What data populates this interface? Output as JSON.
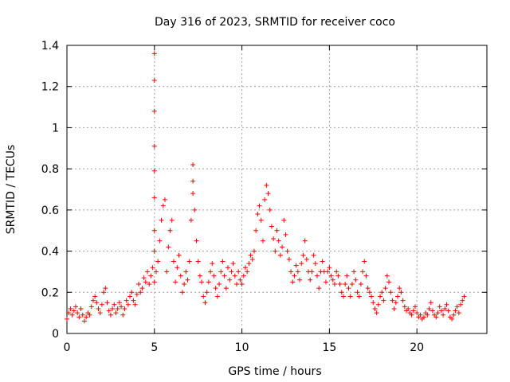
{
  "chart_data": {
    "type": "scatter",
    "title": "Day 316 of 2023, SRMTID for receiver coco",
    "xlabel": "GPS time / hours",
    "ylabel": "SRMTID / TECUs",
    "xlim": [
      0,
      24
    ],
    "ylim": [
      0,
      1.4
    ],
    "xticks": [
      0,
      5,
      10,
      15,
      20
    ],
    "xtick_labels": [
      "0",
      "5",
      "10",
      "15",
      "20"
    ],
    "yticks": [
      0,
      0.2,
      0.4,
      0.6,
      0.8,
      1,
      1.2,
      1.4
    ],
    "ytick_labels": [
      "0",
      "0.2",
      "0.4",
      "0.6",
      "0.8",
      "1",
      "1.2",
      "1.4"
    ],
    "grid": true,
    "marker": "+",
    "color": "#ff0000",
    "series": [
      {
        "name": "SRMTID",
        "points": [
          [
            0.0,
            0.07
          ],
          [
            0.1,
            0.1
          ],
          [
            0.2,
            0.12
          ],
          [
            0.3,
            0.09
          ],
          [
            0.4,
            0.11
          ],
          [
            0.5,
            0.13
          ],
          [
            0.6,
            0.1
          ],
          [
            0.7,
            0.08
          ],
          [
            0.8,
            0.12
          ],
          [
            0.9,
            0.09
          ],
          [
            1.0,
            0.06
          ],
          [
            1.1,
            0.08
          ],
          [
            1.2,
            0.1
          ],
          [
            1.3,
            0.09
          ],
          [
            1.4,
            0.13
          ],
          [
            1.5,
            0.16
          ],
          [
            1.6,
            0.18
          ],
          [
            1.7,
            0.15
          ],
          [
            1.8,
            0.12
          ],
          [
            1.9,
            0.1
          ],
          [
            2.0,
            0.14
          ],
          [
            2.1,
            0.2
          ],
          [
            2.2,
            0.22
          ],
          [
            2.3,
            0.15
          ],
          [
            2.4,
            0.11
          ],
          [
            2.5,
            0.09
          ],
          [
            2.6,
            0.12
          ],
          [
            2.7,
            0.14
          ],
          [
            2.8,
            0.1
          ],
          [
            2.9,
            0.12
          ],
          [
            3.0,
            0.15
          ],
          [
            3.1,
            0.13
          ],
          [
            3.2,
            0.09
          ],
          [
            3.3,
            0.12
          ],
          [
            3.4,
            0.16
          ],
          [
            3.5,
            0.14
          ],
          [
            3.6,
            0.18
          ],
          [
            3.7,
            0.2
          ],
          [
            3.8,
            0.16
          ],
          [
            3.9,
            0.14
          ],
          [
            4.0,
            0.19
          ],
          [
            4.1,
            0.24
          ],
          [
            4.2,
            0.2
          ],
          [
            4.3,
            0.22
          ],
          [
            4.4,
            0.27
          ],
          [
            4.5,
            0.25
          ],
          [
            4.6,
            0.3
          ],
          [
            4.7,
            0.24
          ],
          [
            4.8,
            0.28
          ],
          [
            4.9,
            0.32
          ],
          [
            5.0,
            0.25
          ],
          [
            5.0,
            0.4
          ],
          [
            5.0,
            0.5
          ],
          [
            5.0,
            0.66
          ],
          [
            5.0,
            0.79
          ],
          [
            5.0,
            0.91
          ],
          [
            5.0,
            1.08
          ],
          [
            5.0,
            1.23
          ],
          [
            5.0,
            1.36
          ],
          [
            5.1,
            0.3
          ],
          [
            5.2,
            0.35
          ],
          [
            5.3,
            0.45
          ],
          [
            5.4,
            0.55
          ],
          [
            5.5,
            0.62
          ],
          [
            5.6,
            0.65
          ],
          [
            5.7,
            0.3
          ],
          [
            5.8,
            0.42
          ],
          [
            5.9,
            0.5
          ],
          [
            6.0,
            0.55
          ],
          [
            6.1,
            0.35
          ],
          [
            6.2,
            0.25
          ],
          [
            6.3,
            0.32
          ],
          [
            6.4,
            0.38
          ],
          [
            6.5,
            0.28
          ],
          [
            6.6,
            0.2
          ],
          [
            6.7,
            0.24
          ],
          [
            6.8,
            0.3
          ],
          [
            6.9,
            0.26
          ],
          [
            7.0,
            0.35
          ],
          [
            7.1,
            0.55
          ],
          [
            7.2,
            0.68
          ],
          [
            7.2,
            0.74
          ],
          [
            7.2,
            0.82
          ],
          [
            7.3,
            0.6
          ],
          [
            7.4,
            0.45
          ],
          [
            7.5,
            0.35
          ],
          [
            7.6,
            0.28
          ],
          [
            7.7,
            0.25
          ],
          [
            7.8,
            0.18
          ],
          [
            7.9,
            0.15
          ],
          [
            8.0,
            0.2
          ],
          [
            8.1,
            0.25
          ],
          [
            8.2,
            0.3
          ],
          [
            8.3,
            0.34
          ],
          [
            8.4,
            0.28
          ],
          [
            8.5,
            0.22
          ],
          [
            8.6,
            0.18
          ],
          [
            8.7,
            0.24
          ],
          [
            8.8,
            0.3
          ],
          [
            8.9,
            0.35
          ],
          [
            9.0,
            0.28
          ],
          [
            9.1,
            0.22
          ],
          [
            9.2,
            0.32
          ],
          [
            9.3,
            0.26
          ],
          [
            9.4,
            0.3
          ],
          [
            9.5,
            0.34
          ],
          [
            9.6,
            0.28
          ],
          [
            9.7,
            0.24
          ],
          [
            9.8,
            0.3
          ],
          [
            9.9,
            0.26
          ],
          [
            10.0,
            0.24
          ],
          [
            10.1,
            0.28
          ],
          [
            10.2,
            0.32
          ],
          [
            10.3,
            0.3
          ],
          [
            10.4,
            0.34
          ],
          [
            10.5,
            0.38
          ],
          [
            10.6,
            0.36
          ],
          [
            10.7,
            0.4
          ],
          [
            10.8,
            0.5
          ],
          [
            10.9,
            0.58
          ],
          [
            11.0,
            0.62
          ],
          [
            11.1,
            0.55
          ],
          [
            11.2,
            0.45
          ],
          [
            11.3,
            0.65
          ],
          [
            11.4,
            0.72
          ],
          [
            11.5,
            0.68
          ],
          [
            11.6,
            0.6
          ],
          [
            11.7,
            0.52
          ],
          [
            11.8,
            0.46
          ],
          [
            11.9,
            0.4
          ],
          [
            12.0,
            0.5
          ],
          [
            12.1,
            0.45
          ],
          [
            12.2,
            0.38
          ],
          [
            12.3,
            0.42
          ],
          [
            12.4,
            0.55
          ],
          [
            12.5,
            0.48
          ],
          [
            12.6,
            0.4
          ],
          [
            12.7,
            0.36
          ],
          [
            12.8,
            0.3
          ],
          [
            12.9,
            0.25
          ],
          [
            13.0,
            0.28
          ],
          [
            13.1,
            0.33
          ],
          [
            13.2,
            0.3
          ],
          [
            13.3,
            0.26
          ],
          [
            13.4,
            0.34
          ],
          [
            13.5,
            0.38
          ],
          [
            13.6,
            0.45
          ],
          [
            13.7,
            0.36
          ],
          [
            13.8,
            0.3
          ],
          [
            13.9,
            0.26
          ],
          [
            14.0,
            0.3
          ],
          [
            14.1,
            0.38
          ],
          [
            14.2,
            0.34
          ],
          [
            14.3,
            0.28
          ],
          [
            14.4,
            0.22
          ],
          [
            14.5,
            0.3
          ],
          [
            14.6,
            0.35
          ],
          [
            14.7,
            0.3
          ],
          [
            14.8,
            0.25
          ],
          [
            14.9,
            0.3
          ],
          [
            15.0,
            0.32
          ],
          [
            15.1,
            0.28
          ],
          [
            15.2,
            0.26
          ],
          [
            15.3,
            0.24
          ],
          [
            15.4,
            0.3
          ],
          [
            15.5,
            0.28
          ],
          [
            15.6,
            0.24
          ],
          [
            15.7,
            0.2
          ],
          [
            15.8,
            0.18
          ],
          [
            15.9,
            0.24
          ],
          [
            16.0,
            0.28
          ],
          [
            16.1,
            0.22
          ],
          [
            16.2,
            0.18
          ],
          [
            16.3,
            0.24
          ],
          [
            16.4,
            0.3
          ],
          [
            16.5,
            0.26
          ],
          [
            16.6,
            0.2
          ],
          [
            16.7,
            0.18
          ],
          [
            16.8,
            0.24
          ],
          [
            16.9,
            0.3
          ],
          [
            17.0,
            0.35
          ],
          [
            17.1,
            0.28
          ],
          [
            17.2,
            0.22
          ],
          [
            17.3,
            0.2
          ],
          [
            17.4,
            0.18
          ],
          [
            17.5,
            0.15
          ],
          [
            17.6,
            0.12
          ],
          [
            17.7,
            0.1
          ],
          [
            17.8,
            0.14
          ],
          [
            17.9,
            0.18
          ],
          [
            18.0,
            0.2
          ],
          [
            18.1,
            0.16
          ],
          [
            18.2,
            0.22
          ],
          [
            18.3,
            0.28
          ],
          [
            18.4,
            0.25
          ],
          [
            18.5,
            0.2
          ],
          [
            18.6,
            0.16
          ],
          [
            18.7,
            0.12
          ],
          [
            18.8,
            0.15
          ],
          [
            18.9,
            0.18
          ],
          [
            19.0,
            0.22
          ],
          [
            19.1,
            0.2
          ],
          [
            19.2,
            0.16
          ],
          [
            19.3,
            0.13
          ],
          [
            19.4,
            0.11
          ],
          [
            19.5,
            0.12
          ],
          [
            19.6,
            0.1
          ],
          [
            19.7,
            0.09
          ],
          [
            19.8,
            0.11
          ],
          [
            19.9,
            0.13
          ],
          [
            20.0,
            0.1
          ],
          [
            20.1,
            0.08
          ],
          [
            20.2,
            0.09
          ],
          [
            20.3,
            0.07
          ],
          [
            20.4,
            0.08
          ],
          [
            20.5,
            0.1
          ],
          [
            20.6,
            0.09
          ],
          [
            20.7,
            0.12
          ],
          [
            20.8,
            0.15
          ],
          [
            20.9,
            0.11
          ],
          [
            21.0,
            0.09
          ],
          [
            21.1,
            0.08
          ],
          [
            21.2,
            0.1
          ],
          [
            21.3,
            0.13
          ],
          [
            21.4,
            0.11
          ],
          [
            21.5,
            0.09
          ],
          [
            21.6,
            0.12
          ],
          [
            21.7,
            0.14
          ],
          [
            21.8,
            0.11
          ],
          [
            21.9,
            0.08
          ],
          [
            22.0,
            0.07
          ],
          [
            22.1,
            0.09
          ],
          [
            22.2,
            0.11
          ],
          [
            22.3,
            0.13
          ],
          [
            22.4,
            0.1
          ],
          [
            22.5,
            0.14
          ],
          [
            22.6,
            0.16
          ],
          [
            22.7,
            0.18
          ]
        ]
      }
    ]
  }
}
